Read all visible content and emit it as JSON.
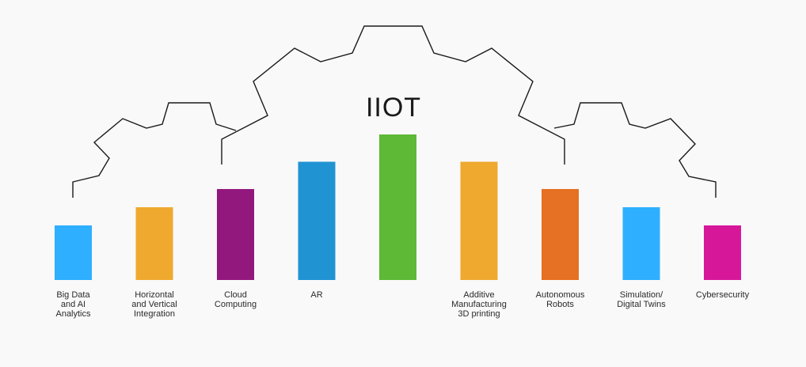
{
  "hub": {
    "title": "IIOT"
  },
  "chart_data": {
    "type": "bar",
    "categories": [
      "Big Data and AI Analytics",
      "Horizontal and Vertical Integration",
      "Cloud Computing",
      "AR",
      "",
      "Additive Manufacturing 3D printing",
      "Autonomous Robots",
      "Simulation/ Digital Twins",
      "Cybersecurity"
    ],
    "values": [
      3,
      4,
      5,
      6.5,
      8,
      6.5,
      5,
      4,
      3
    ],
    "colors": [
      "#2eafff",
      "#efa92f",
      "#93187e",
      "#2093d3",
      "#5db936",
      "#efa92f",
      "#e67023",
      "#2eafff",
      "#d7179a"
    ],
    "label_lines": [
      [
        "Big Data",
        "and AI",
        "Analytics"
      ],
      [
        "Horizontal",
        "and Vertical",
        "Integration"
      ],
      [
        "Cloud",
        "Computing"
      ],
      [
        "AR"
      ],
      [],
      [
        "Additive",
        "Manufacturing",
        "3D printing"
      ],
      [
        "Autonomous",
        "Robots"
      ],
      [
        "Simulation/",
        "Digital Twins"
      ],
      [
        "Cybersecurity"
      ]
    ],
    "ylim": [
      0,
      8
    ],
    "grid": false,
    "legend": "none"
  }
}
